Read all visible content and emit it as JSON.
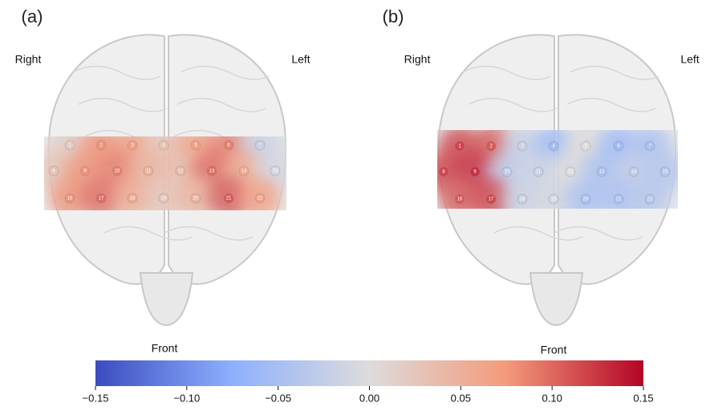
{
  "panels": [
    {
      "label": "(a)",
      "right": "Right",
      "left": "Left",
      "front": "Front",
      "channels": [
        {
          "label": "1",
          "value": 0.02
        },
        {
          "label": "2",
          "value": 0.08
        },
        {
          "label": "3",
          "value": 0.07
        },
        {
          "label": "4",
          "value": 0.03
        },
        {
          "label": "5",
          "value": 0.07
        },
        {
          "label": "6",
          "value": 0.09
        },
        {
          "label": "7",
          "value": -0.02
        },
        {
          "label": "8",
          "value": 0.03
        },
        {
          "label": "9",
          "value": 0.08
        },
        {
          "label": "10",
          "value": 0.09
        },
        {
          "label": "11",
          "value": 0.05
        },
        {
          "label": "12",
          "value": 0.04
        },
        {
          "label": "13",
          "value": 0.1
        },
        {
          "label": "14",
          "value": 0.06
        },
        {
          "label": "15",
          "value": -0.01
        },
        {
          "label": "16",
          "value": 0.08
        },
        {
          "label": "17",
          "value": 0.1
        },
        {
          "label": "18",
          "value": 0.06
        },
        {
          "label": "19",
          "value": 0.03
        },
        {
          "label": "20",
          "value": 0.05
        },
        {
          "label": "21",
          "value": 0.11
        },
        {
          "label": "22",
          "value": 0.07
        }
      ]
    },
    {
      "label": "(b)",
      "right": "Right",
      "left": "Left",
      "front": "Front",
      "channels": [
        {
          "label": "1",
          "value": 0.12
        },
        {
          "label": "2",
          "value": 0.11
        },
        {
          "label": "3",
          "value": -0.02
        },
        {
          "label": "4",
          "value": -0.06
        },
        {
          "label": "5",
          "value": 0.0
        },
        {
          "label": "6",
          "value": -0.06
        },
        {
          "label": "7",
          "value": -0.05
        },
        {
          "label": "8",
          "value": 0.12
        },
        {
          "label": "9",
          "value": 0.13
        },
        {
          "label": "10",
          "value": -0.03
        },
        {
          "label": "11",
          "value": -0.02
        },
        {
          "label": "12",
          "value": 0.0
        },
        {
          "label": "13",
          "value": -0.05
        },
        {
          "label": "14",
          "value": -0.03
        },
        {
          "label": "15",
          "value": -0.04
        },
        {
          "label": "16",
          "value": 0.11
        },
        {
          "label": "17",
          "value": 0.12
        },
        {
          "label": "18",
          "value": -0.02
        },
        {
          "label": "19",
          "value": -0.01
        },
        {
          "label": "20",
          "value": -0.05
        },
        {
          "label": "21",
          "value": -0.05
        },
        {
          "label": "22",
          "value": -0.04
        }
      ]
    }
  ],
  "colorbar": {
    "range": [
      -0.15,
      0.15
    ],
    "ticks": [
      {
        "value": -0.15,
        "label": "−0.15"
      },
      {
        "value": -0.1,
        "label": "−0.10"
      },
      {
        "value": -0.05,
        "label": "−0.05"
      },
      {
        "value": 0,
        "label": "0.00"
      },
      {
        "value": 0.05,
        "label": "0.05"
      },
      {
        "value": 0.1,
        "label": "0.10"
      },
      {
        "value": 0.15,
        "label": "0.15"
      }
    ]
  }
}
